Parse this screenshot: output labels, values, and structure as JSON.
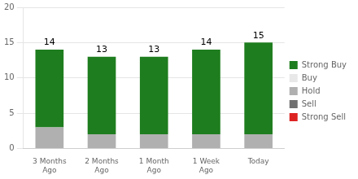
{
  "chart_data": {
    "type": "bar",
    "stacked": true,
    "categories": [
      "3 Months\nAgo",
      "2 Months\nAgo",
      "1 Month\nAgo",
      "1 Week\nAgo",
      "Today"
    ],
    "series": [
      {
        "name": "Strong Sell",
        "color": "#dd2222",
        "values": [
          0,
          0,
          0,
          0,
          0
        ]
      },
      {
        "name": "Sell",
        "color": "#707070",
        "values": [
          0,
          0,
          0,
          0,
          0
        ]
      },
      {
        "name": "Hold",
        "color": "#b0b0b0",
        "values": [
          3,
          2,
          2,
          2,
          2
        ]
      },
      {
        "name": "Buy",
        "color": "#e8e8e8",
        "values": [
          0,
          0,
          0,
          0,
          0
        ]
      },
      {
        "name": "Strong Buy",
        "color": "#1e7d1e",
        "values": [
          11,
          11,
          11,
          12,
          13
        ]
      }
    ],
    "totals": [
      14,
      13,
      13,
      14,
      15
    ],
    "ylim": [
      0,
      20
    ],
    "yticks": [
      0,
      5,
      10,
      15,
      20
    ],
    "grid": true,
    "legend": "right"
  }
}
